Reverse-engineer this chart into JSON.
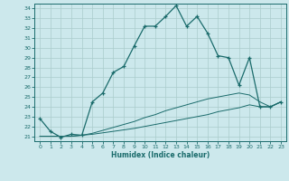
{
  "title": "",
  "xlabel": "Humidex (Indice chaleur)",
  "bg_color": "#cce8ec",
  "grid_color": "#aacccc",
  "line_color": "#1a6b6b",
  "xlim": [
    -0.5,
    23.5
  ],
  "ylim": [
    20.5,
    34.5
  ],
  "xticks": [
    0,
    1,
    2,
    3,
    4,
    5,
    6,
    7,
    8,
    9,
    10,
    11,
    12,
    13,
    14,
    15,
    16,
    17,
    18,
    19,
    20,
    21,
    22,
    23
  ],
  "yticks": [
    21,
    22,
    23,
    24,
    25,
    26,
    27,
    28,
    29,
    30,
    31,
    32,
    33,
    34
  ],
  "series1_x": [
    0,
    1,
    2,
    3,
    4,
    5,
    6,
    7,
    8,
    9,
    10,
    11,
    12,
    13,
    14,
    15,
    16,
    17,
    18,
    19,
    20,
    21,
    22,
    23
  ],
  "series1_y": [
    22.8,
    21.5,
    20.9,
    21.2,
    21.1,
    24.5,
    25.4,
    27.5,
    28.1,
    30.2,
    32.2,
    32.2,
    33.2,
    34.3,
    32.2,
    33.2,
    31.5,
    29.2,
    29.0,
    26.2,
    29.0,
    24.0,
    24.0,
    24.5
  ],
  "series2_x": [
    0,
    1,
    2,
    3,
    4,
    5,
    6,
    7,
    8,
    9,
    10,
    11,
    12,
    13,
    14,
    15,
    16,
    17,
    18,
    19,
    20,
    21,
    22,
    23
  ],
  "series2_y": [
    21.0,
    21.0,
    21.0,
    21.0,
    21.1,
    21.2,
    21.35,
    21.5,
    21.65,
    21.8,
    22.0,
    22.2,
    22.4,
    22.6,
    22.8,
    23.0,
    23.2,
    23.5,
    23.7,
    23.9,
    24.2,
    24.0,
    24.0,
    24.5
  ],
  "series3_x": [
    0,
    1,
    2,
    3,
    4,
    5,
    6,
    7,
    8,
    9,
    10,
    11,
    12,
    13,
    14,
    15,
    16,
    17,
    18,
    19,
    20,
    21,
    22,
    23
  ],
  "series3_y": [
    21.0,
    21.0,
    21.0,
    21.0,
    21.1,
    21.3,
    21.6,
    21.9,
    22.2,
    22.5,
    22.9,
    23.2,
    23.6,
    23.9,
    24.2,
    24.5,
    24.8,
    25.0,
    25.2,
    25.4,
    25.2,
    24.5,
    24.0,
    24.5
  ]
}
